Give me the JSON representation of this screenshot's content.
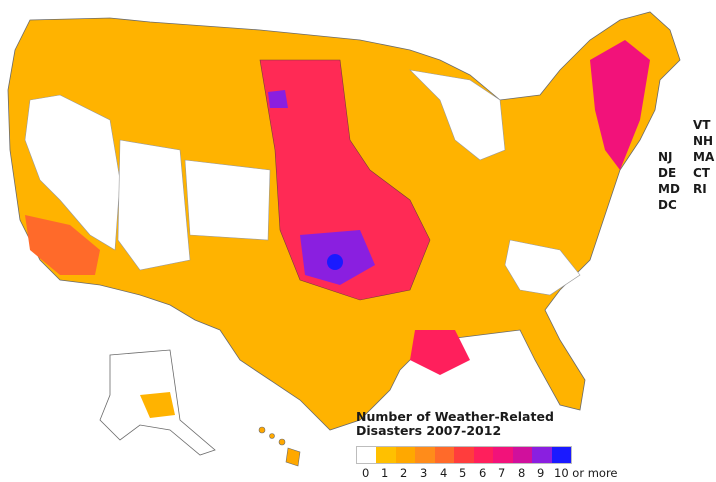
{
  "legend": {
    "title": "Number of Weather-Related\nDisasters 2007-2012",
    "ticks": [
      "0",
      "1",
      "2",
      "3",
      "4",
      "5",
      "6",
      "7",
      "8",
      "9",
      "10 or more"
    ],
    "colors": [
      "#ffffff",
      "#ffc000",
      "#ffa800",
      "#ff8c1a",
      "#ff6a2a",
      "#ff3d3d",
      "#ff1f5c",
      "#f2127a",
      "#d0109c",
      "#8a1fe0",
      "#1a1aff"
    ]
  },
  "state_labels": [
    "VT",
    "NH",
    "MA",
    "CT",
    "RI",
    "NJ",
    "DE",
    "MD",
    "DC"
  ],
  "icon": "us-county-map"
}
